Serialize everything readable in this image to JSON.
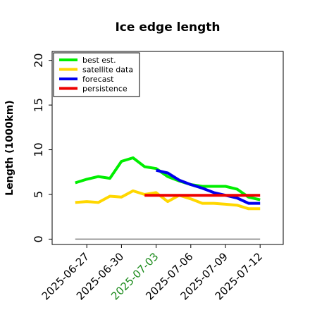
{
  "chart_data": {
    "type": "line",
    "title": "Ice edge length",
    "xlabel": "",
    "ylabel": "Length (1000km)",
    "ylim": [
      -0.6,
      21
    ],
    "yticks": [
      0,
      5,
      10,
      15,
      20
    ],
    "xlim": [
      "2025-06-24",
      "2025-07-14"
    ],
    "xticks": [
      {
        "date": "2025-06-27",
        "label": "2025-06-27",
        "color": "#000000"
      },
      {
        "date": "2025-06-30",
        "label": "2025-06-30",
        "color": "#000000"
      },
      {
        "date": "2025-07-03",
        "label": "2025-07-03",
        "color": "#1a8a1a"
      },
      {
        "date": "2025-07-06",
        "label": "2025-07-06",
        "color": "#000000"
      },
      {
        "date": "2025-07-09",
        "label": "2025-07-09",
        "color": "#000000"
      },
      {
        "date": "2025-07-12",
        "label": "2025-07-12",
        "color": "#000000"
      }
    ],
    "legend_position": "top-left",
    "grid": false,
    "baseline": {
      "y": 0,
      "from": "2025-06-26",
      "to": "2025-07-12",
      "color": "#808080"
    },
    "series": [
      {
        "name": "best est.",
        "color": "#00ee00",
        "points": [
          [
            "2025-06-26",
            6.3
          ],
          [
            "2025-06-27",
            6.7
          ],
          [
            "2025-06-28",
            7.0
          ],
          [
            "2025-06-29",
            6.8
          ],
          [
            "2025-06-30",
            8.7
          ],
          [
            "2025-07-01",
            9.1
          ],
          [
            "2025-07-02",
            8.1
          ],
          [
            "2025-07-03",
            7.9
          ],
          [
            "2025-07-04",
            7.0
          ],
          [
            "2025-07-05",
            6.5
          ],
          [
            "2025-07-06",
            6.1
          ],
          [
            "2025-07-07",
            5.9
          ],
          [
            "2025-07-08",
            5.9
          ],
          [
            "2025-07-09",
            5.9
          ],
          [
            "2025-07-10",
            5.6
          ],
          [
            "2025-07-11",
            4.7
          ],
          [
            "2025-07-12",
            4.4
          ]
        ]
      },
      {
        "name": "satellite data",
        "color": "#ffd700",
        "points": [
          [
            "2025-06-26",
            4.1
          ],
          [
            "2025-06-27",
            4.2
          ],
          [
            "2025-06-28",
            4.1
          ],
          [
            "2025-06-29",
            4.8
          ],
          [
            "2025-06-30",
            4.7
          ],
          [
            "2025-07-01",
            5.4
          ],
          [
            "2025-07-02",
            5.0
          ],
          [
            "2025-07-03",
            5.2
          ],
          [
            "2025-07-04",
            4.2
          ],
          [
            "2025-07-05",
            4.9
          ],
          [
            "2025-07-06",
            4.5
          ],
          [
            "2025-07-07",
            4.0
          ],
          [
            "2025-07-08",
            4.0
          ],
          [
            "2025-07-09",
            3.9
          ],
          [
            "2025-07-10",
            3.8
          ],
          [
            "2025-07-11",
            3.4
          ],
          [
            "2025-07-12",
            3.4
          ]
        ]
      },
      {
        "name": "forecast",
        "color": "#0000ee",
        "points": [
          [
            "2025-07-03",
            7.7
          ],
          [
            "2025-07-04",
            7.4
          ],
          [
            "2025-07-05",
            6.6
          ],
          [
            "2025-07-06",
            6.1
          ],
          [
            "2025-07-07",
            5.7
          ],
          [
            "2025-07-08",
            5.2
          ],
          [
            "2025-07-09",
            4.9
          ],
          [
            "2025-07-10",
            4.6
          ],
          [
            "2025-07-11",
            4.0
          ],
          [
            "2025-07-12",
            4.0
          ]
        ]
      },
      {
        "name": "persistence",
        "color": "#ee0000",
        "points": [
          [
            "2025-07-02",
            4.9
          ],
          [
            "2025-07-12",
            4.9
          ]
        ]
      }
    ]
  }
}
